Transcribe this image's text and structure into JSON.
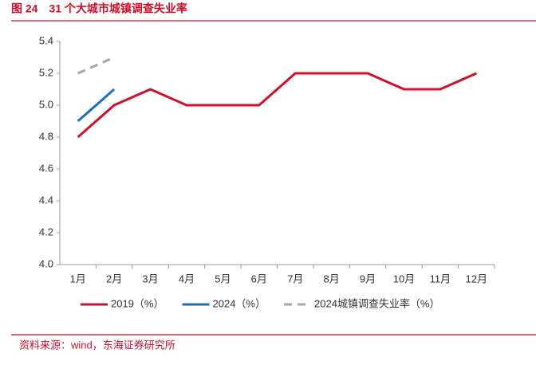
{
  "chart_data": {
    "type": "line",
    "title": "图 24　31 个大城市城镇调查失业率",
    "source": "资料来源：wind，东海证券研究所",
    "categories": [
      "1月",
      "2月",
      "3月",
      "4月",
      "5月",
      "6月",
      "7月",
      "8月",
      "9月",
      "10月",
      "11月",
      "12月"
    ],
    "series": [
      {
        "name": "2019（%）",
        "color": "#d0102a",
        "dash": false,
        "values": [
          4.8,
          5.0,
          5.1,
          5.0,
          5.0,
          5.0,
          5.2,
          5.2,
          5.2,
          5.1,
          5.1,
          5.2
        ]
      },
      {
        "name": "2024（%）",
        "color": "#1f6fb8",
        "dash": false,
        "values": [
          4.9,
          5.1,
          null,
          null,
          null,
          null,
          null,
          null,
          null,
          null,
          null,
          null
        ]
      },
      {
        "name": "2024城镇调查失业率（%）",
        "color": "#a6a6a6",
        "dash": true,
        "values": [
          5.2,
          5.3,
          null,
          null,
          null,
          null,
          null,
          null,
          null,
          null,
          null,
          null
        ]
      }
    ],
    "ylim": [
      4.0,
      5.4
    ],
    "yticks": [
      {
        "value": 4,
        "label": "4.0"
      },
      4.2,
      4.4,
      4.6,
      4.8,
      {
        "value": 5,
        "label": "5.0"
      },
      5.2,
      5.4
    ],
    "grid": false,
    "legend": "bottom"
  }
}
